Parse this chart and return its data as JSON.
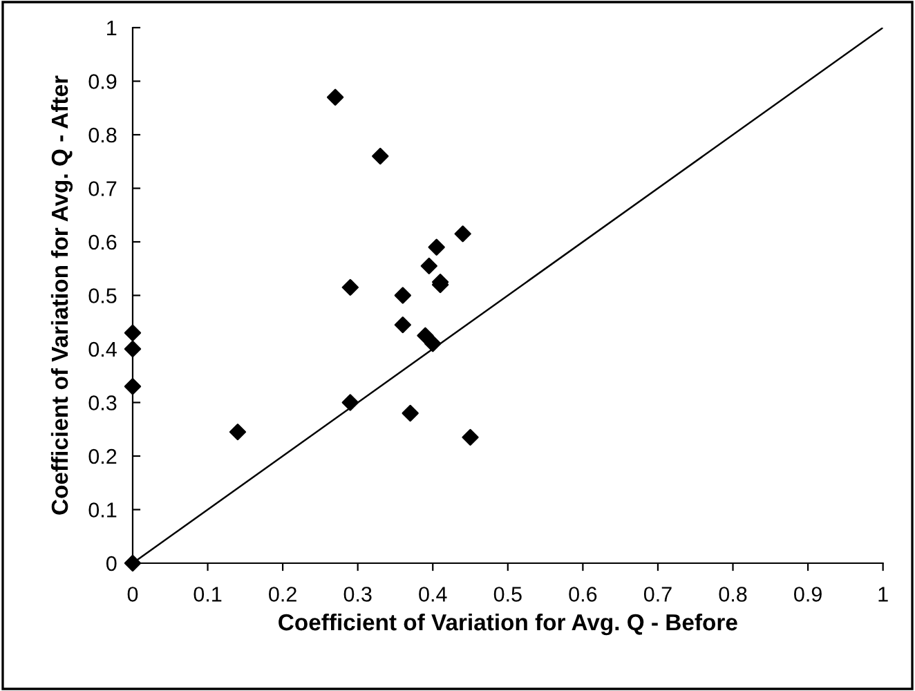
{
  "chart_data": {
    "type": "scatter",
    "xlabel": "Coefficient of Variation for Avg. Q - Before",
    "ylabel": "Coefficient of Variation for Avg. Q - After",
    "xlim": [
      0,
      1
    ],
    "ylim": [
      0,
      1
    ],
    "xticks": [
      0,
      0.1,
      0.2,
      0.3,
      0.4,
      0.5,
      0.6,
      0.7,
      0.8,
      0.9,
      1
    ],
    "yticks": [
      0,
      0.1,
      0.2,
      0.3,
      0.4,
      0.5,
      0.6,
      0.7,
      0.8,
      0.9,
      1
    ],
    "grid": false,
    "legend": false,
    "marker": "diamond",
    "series": [
      {
        "color": "#000000",
        "x": [
          0,
          0,
          0,
          0,
          0.14,
          0.27,
          0.33,
          0.29,
          0.29,
          0.36,
          0.36,
          0.37,
          0.39,
          0.4,
          0.395,
          0.405,
          0.41,
          0.41,
          0.44,
          0.45
        ],
        "values": [
          0,
          0.43,
          0.4,
          0.33,
          0.245,
          0.87,
          0.76,
          0.515,
          0.3,
          0.5,
          0.445,
          0.28,
          0.425,
          0.41,
          0.555,
          0.59,
          0.52,
          0.525,
          0.615,
          0.235
        ]
      },
      {
        "type": "line",
        "color": "#000000",
        "x": [
          0,
          1
        ],
        "values": [
          0,
          1
        ],
        "marker": "none",
        "line_style": "solid"
      }
    ]
  }
}
